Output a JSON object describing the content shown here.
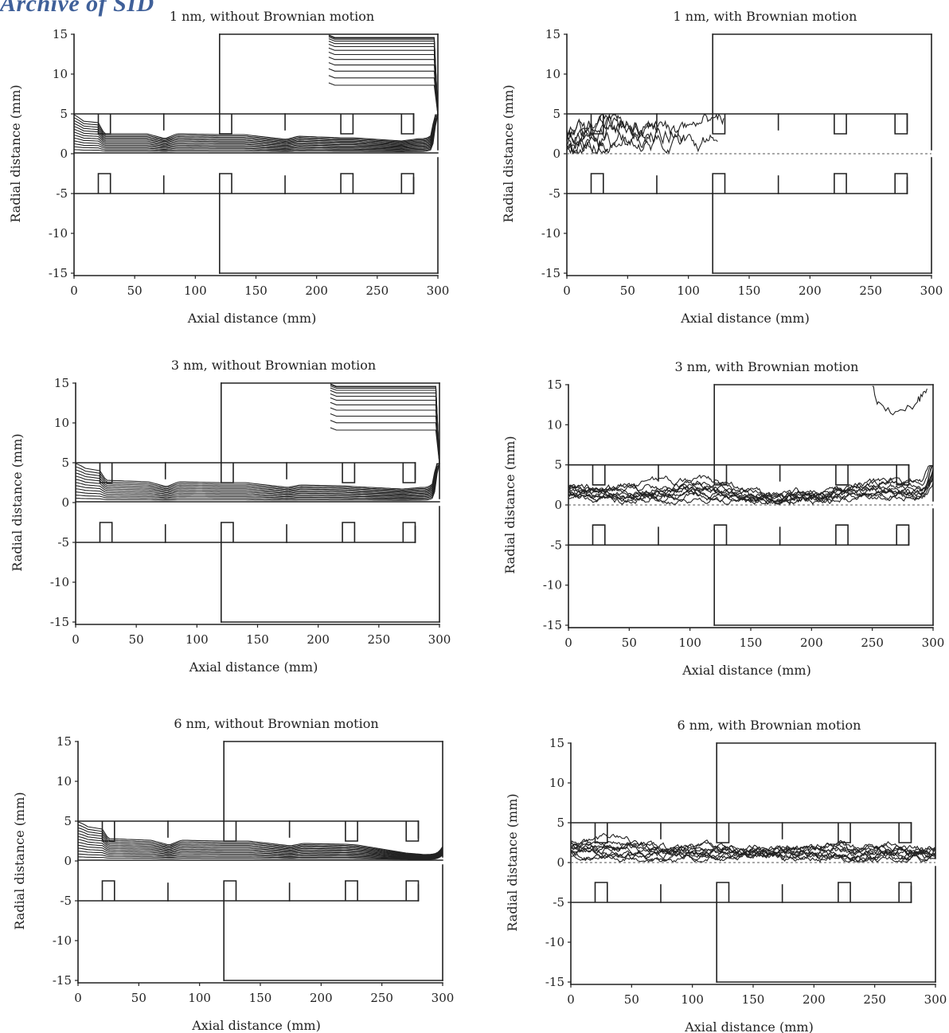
{
  "watermark": "Archive of SID",
  "chart_data": [
    {
      "type": "line",
      "title": "1 nm, without Brownian motion",
      "xlabel": "Axial distance (mm)",
      "ylabel": "Radial distance (mm)",
      "xlim": [
        0,
        300
      ],
      "ylim": [
        -15,
        15
      ],
      "xticks": [
        0,
        50,
        100,
        150,
        200,
        250,
        300
      ],
      "yticks": [
        15,
        10,
        5,
        0,
        -5,
        -10,
        -15
      ],
      "brownian": false,
      "trajectories": 13,
      "series": [
        {
          "x": [
            0,
            20,
            25,
            60,
            75,
            85,
            120,
            140,
            175,
            185,
            220,
            230,
            270,
            285,
            295,
            300
          ],
          "y": [
            4.2,
            3.9,
            2.5,
            2.5,
            1.9,
            2.5,
            2.4,
            2.4,
            1.8,
            2.2,
            2.0,
            2.0,
            1.6,
            1.9,
            3.0,
            14.5
          ]
        }
      ]
    },
    {
      "type": "line",
      "title": "1 nm, with Brownian motion",
      "xlabel": "Axial distance (mm)",
      "ylabel": "Radial distance (mm)",
      "xlim": [
        0,
        300
      ],
      "ylim": [
        -15,
        15
      ],
      "xticks": [
        0,
        50,
        100,
        150,
        200,
        250,
        300
      ],
      "yticks": [
        15,
        10,
        5,
        0,
        -5,
        -10,
        -15
      ],
      "brownian": true,
      "trajectories": 8,
      "series": [
        {
          "x": [
            0,
            25,
            50,
            75,
            100,
            125,
            135
          ],
          "y": [
            2.0,
            2.9,
            3.1,
            2.4,
            2.6,
            3.9,
            4.2
          ]
        }
      ]
    },
    {
      "type": "line",
      "title": "3 nm, without Brownian motion",
      "xlabel": "Axial distance (mm)",
      "ylabel": "Radial distance (mm)",
      "xlim": [
        0,
        300
      ],
      "ylim": [
        -15,
        15
      ],
      "xticks": [
        0,
        50,
        100,
        150,
        200,
        250,
        300
      ],
      "yticks": [
        15,
        10,
        5,
        0,
        -5,
        -10,
        -15
      ],
      "brownian": false,
      "trajectories": 12,
      "series": [
        {
          "x": [
            0,
            20,
            25,
            60,
            75,
            85,
            120,
            140,
            175,
            185,
            220,
            230,
            270,
            285,
            295,
            300
          ],
          "y": [
            4.5,
            4.0,
            2.8,
            2.6,
            2.0,
            2.6,
            2.5,
            2.5,
            1.9,
            2.2,
            2.1,
            2.0,
            1.7,
            1.9,
            3.2,
            14.6
          ]
        }
      ]
    },
    {
      "type": "line",
      "title": "3 nm, with Brownian motion",
      "xlabel": "Axial distance (mm)",
      "ylabel": "Radial distance (mm)",
      "xlim": [
        0,
        300
      ],
      "ylim": [
        -15,
        15
      ],
      "xticks": [
        0,
        50,
        100,
        150,
        200,
        250,
        300
      ],
      "yticks": [
        15,
        10,
        5,
        0,
        -5,
        -10,
        -15
      ],
      "brownian": true,
      "trajectories": 10,
      "series": [
        {
          "x": [
            0,
            50,
            100,
            150,
            200,
            250,
            290,
            300
          ],
          "y": [
            2.0,
            1.6,
            2.3,
            1.0,
            1.2,
            2.5,
            1.5,
            13.0
          ]
        },
        {
          "x": [
            250,
            255,
            265,
            275,
            285,
            290,
            295
          ],
          "y": [
            15,
            12.5,
            11.5,
            12.0,
            12.5,
            13.5,
            14.5
          ]
        }
      ]
    },
    {
      "type": "line",
      "title": "6 nm, without Brownian motion",
      "xlabel": "Axial distance (mm)",
      "ylabel": "Radial distance (mm)",
      "xlim": [
        0,
        300
      ],
      "ylim": [
        -15,
        15
      ],
      "xticks": [
        0,
        50,
        100,
        150,
        200,
        250,
        300
      ],
      "yticks": [
        15,
        10,
        5,
        0,
        -5,
        -10,
        -15
      ],
      "brownian": false,
      "trajectories": 13,
      "series": [
        {
          "x": [
            0,
            20,
            25,
            60,
            75,
            85,
            120,
            140,
            175,
            185,
            220,
            230,
            270,
            285,
            295,
            300
          ],
          "y": [
            4.5,
            4.0,
            2.8,
            2.6,
            2.0,
            2.6,
            2.5,
            2.5,
            1.9,
            2.2,
            2.1,
            2.0,
            1.0,
            0.8,
            1.2,
            1.8
          ]
        }
      ]
    },
    {
      "type": "line",
      "title": "6 nm, with Brownian motion",
      "xlabel": "Axial distance (mm)",
      "ylabel": "Radial distance (mm)",
      "xlim": [
        0,
        300
      ],
      "ylim": [
        -15,
        15
      ],
      "xticks": [
        0,
        50,
        100,
        150,
        200,
        250,
        300
      ],
      "yticks": [
        15,
        10,
        5,
        0,
        -5,
        -10,
        -15
      ],
      "brownian": true,
      "trajectories": 10,
      "series": [
        {
          "x": [
            0,
            25,
            50,
            75,
            100,
            125,
            150,
            175,
            200,
            225,
            250,
            275,
            300
          ],
          "y": [
            2.0,
            1.8,
            1.7,
            1.5,
            1.6,
            1.2,
            1.7,
            1.0,
            1.8,
            1.2,
            1.5,
            1.1,
            1.6
          ]
        }
      ]
    }
  ]
}
